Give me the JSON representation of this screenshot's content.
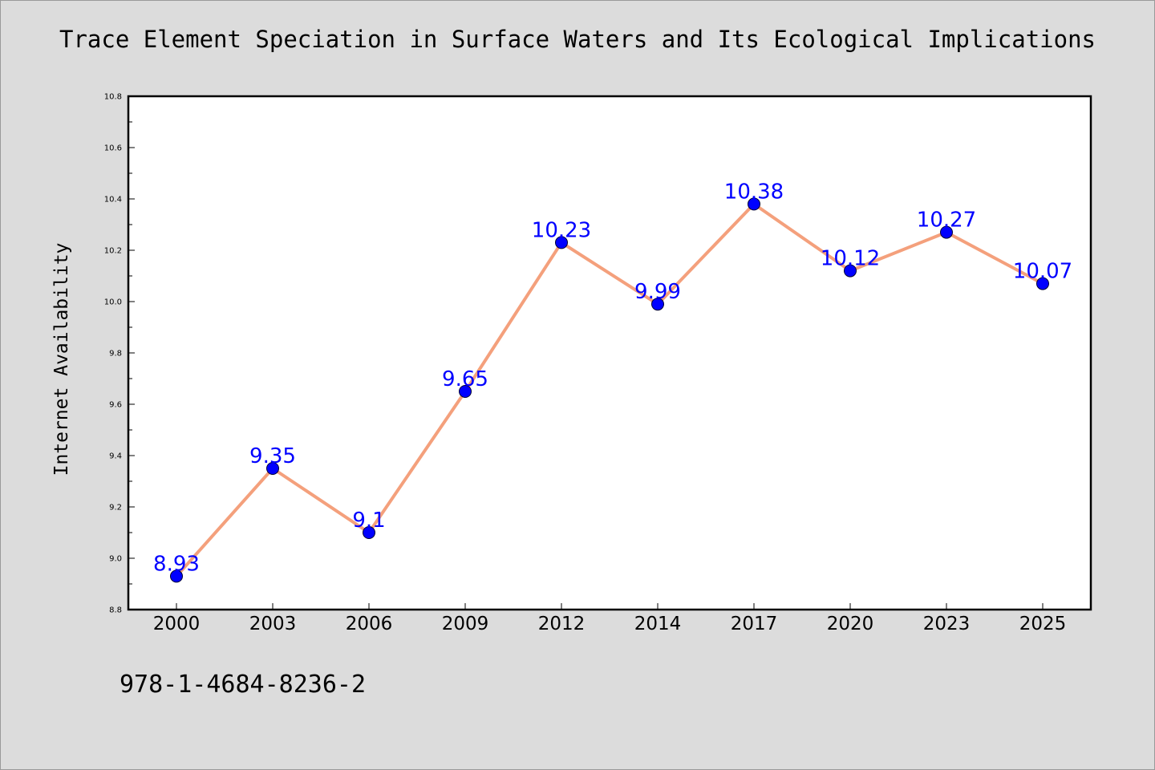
{
  "page": {
    "isbn": "978-1-4684-8236-2"
  },
  "chart_data": {
    "type": "line",
    "title": "Trace Element Speciation in Surface Waters and Its Ecological Implications",
    "xlabel": "",
    "ylabel": "Internet Availability",
    "categories": [
      "2000",
      "2003",
      "2006",
      "2009",
      "2012",
      "2014",
      "2017",
      "2020",
      "2023",
      "2025"
    ],
    "series": [
      {
        "values": [
          8.93,
          9.35,
          9.1,
          9.65,
          10.23,
          9.99,
          10.38,
          10.12,
          10.27,
          10.07
        ],
        "data_labels": [
          "8.93",
          "9.35",
          "9.1",
          "9.65",
          "10.23",
          "9.99",
          "10.38",
          "10.12",
          "10.27",
          "10.07"
        ],
        "line_color": "#f4a07c",
        "marker_color": "#0000ff"
      }
    ],
    "ylim": [
      8.8,
      10.8
    ],
    "y_ticks": [
      "8.8",
      "9.0",
      "9.2",
      "9.4",
      "9.6",
      "9.8",
      "10.0",
      "10.2",
      "10.4",
      "10.6",
      "10.8"
    ],
    "grid": false,
    "legend": false,
    "colors": {
      "background": "#dcdcdc",
      "plot_background": "#ffffff",
      "label_color": "#0000ff"
    }
  }
}
